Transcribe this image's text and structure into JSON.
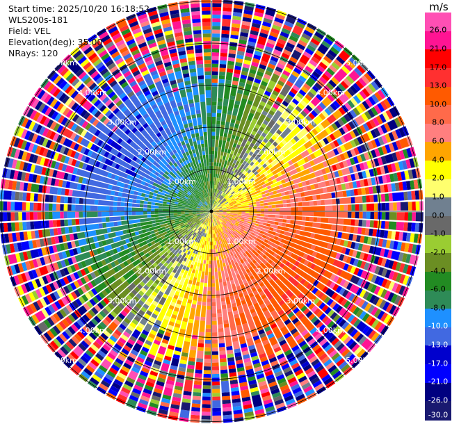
{
  "info": {
    "start_time": "Start time: 2025/10/20 16:18:52",
    "instrument": "WLS200s-181",
    "field": "Field: VEL",
    "elevation": "Elevation(deg): 35.00",
    "nrays": "NRays: 120"
  },
  "colorbar": {
    "unit": "m/s",
    "ticks": [
      "26.0",
      "21.0",
      "17.0",
      "13.0",
      "10.0",
      "8.0",
      "6.0",
      "4.0",
      "2.0",
      "1.0",
      "0.0",
      "-1.0",
      "-2.0",
      "-4.0",
      "-6.0",
      "-8.0",
      "-10.0",
      "-13.0",
      "-17.0",
      "-21.0",
      "-26.0",
      "-30.0"
    ],
    "colors": [
      "#ff4fb4",
      "#ff1493",
      "#ff0000",
      "#ff3030",
      "#ff5a00",
      "#ff6a4a",
      "#ff7f7f",
      "#ffa500",
      "#ffff00",
      "#ffff6e",
      "#708090",
      "#696969",
      "#9acd32",
      "#6b8e23",
      "#228b22",
      "#2e8b57",
      "#1e90ff",
      "#4169e1",
      "#0000cd",
      "#0000ff",
      "#000080",
      "#191970"
    ],
    "light_label_indices": [
      16,
      17,
      18,
      19,
      20,
      21
    ]
  },
  "chart_data": {
    "type": "heatmap",
    "subtype": "radar PPI (plan position indicator)",
    "field": "VEL",
    "units": "m/s",
    "nrays": 120,
    "elevation_deg": 35.0,
    "range_rings_km": [
      1,
      2,
      3,
      4,
      5
    ],
    "range_ring_labels": [
      "1.00km",
      "2.00km",
      "3.00km",
      "4.00km",
      "5.00km"
    ],
    "max_range_km": 5.0,
    "color_scale_bounds": [
      -30,
      -26,
      -21,
      -17,
      -13,
      -10,
      -8,
      -6,
      -4,
      -2,
      -1,
      0,
      1,
      2,
      4,
      6,
      8,
      10,
      13,
      17,
      21,
      26,
      30
    ],
    "pattern": {
      "description_values": "radial velocity: negative (away-side, blue/green) toward west/north-west, positive (red/orange) toward east/south-east; noisy random values beyond ~3.5 km",
      "signal_range_km": 3.5,
      "amplitude_ms": 12,
      "zero_line_azimuth_deg": 35
    }
  }
}
